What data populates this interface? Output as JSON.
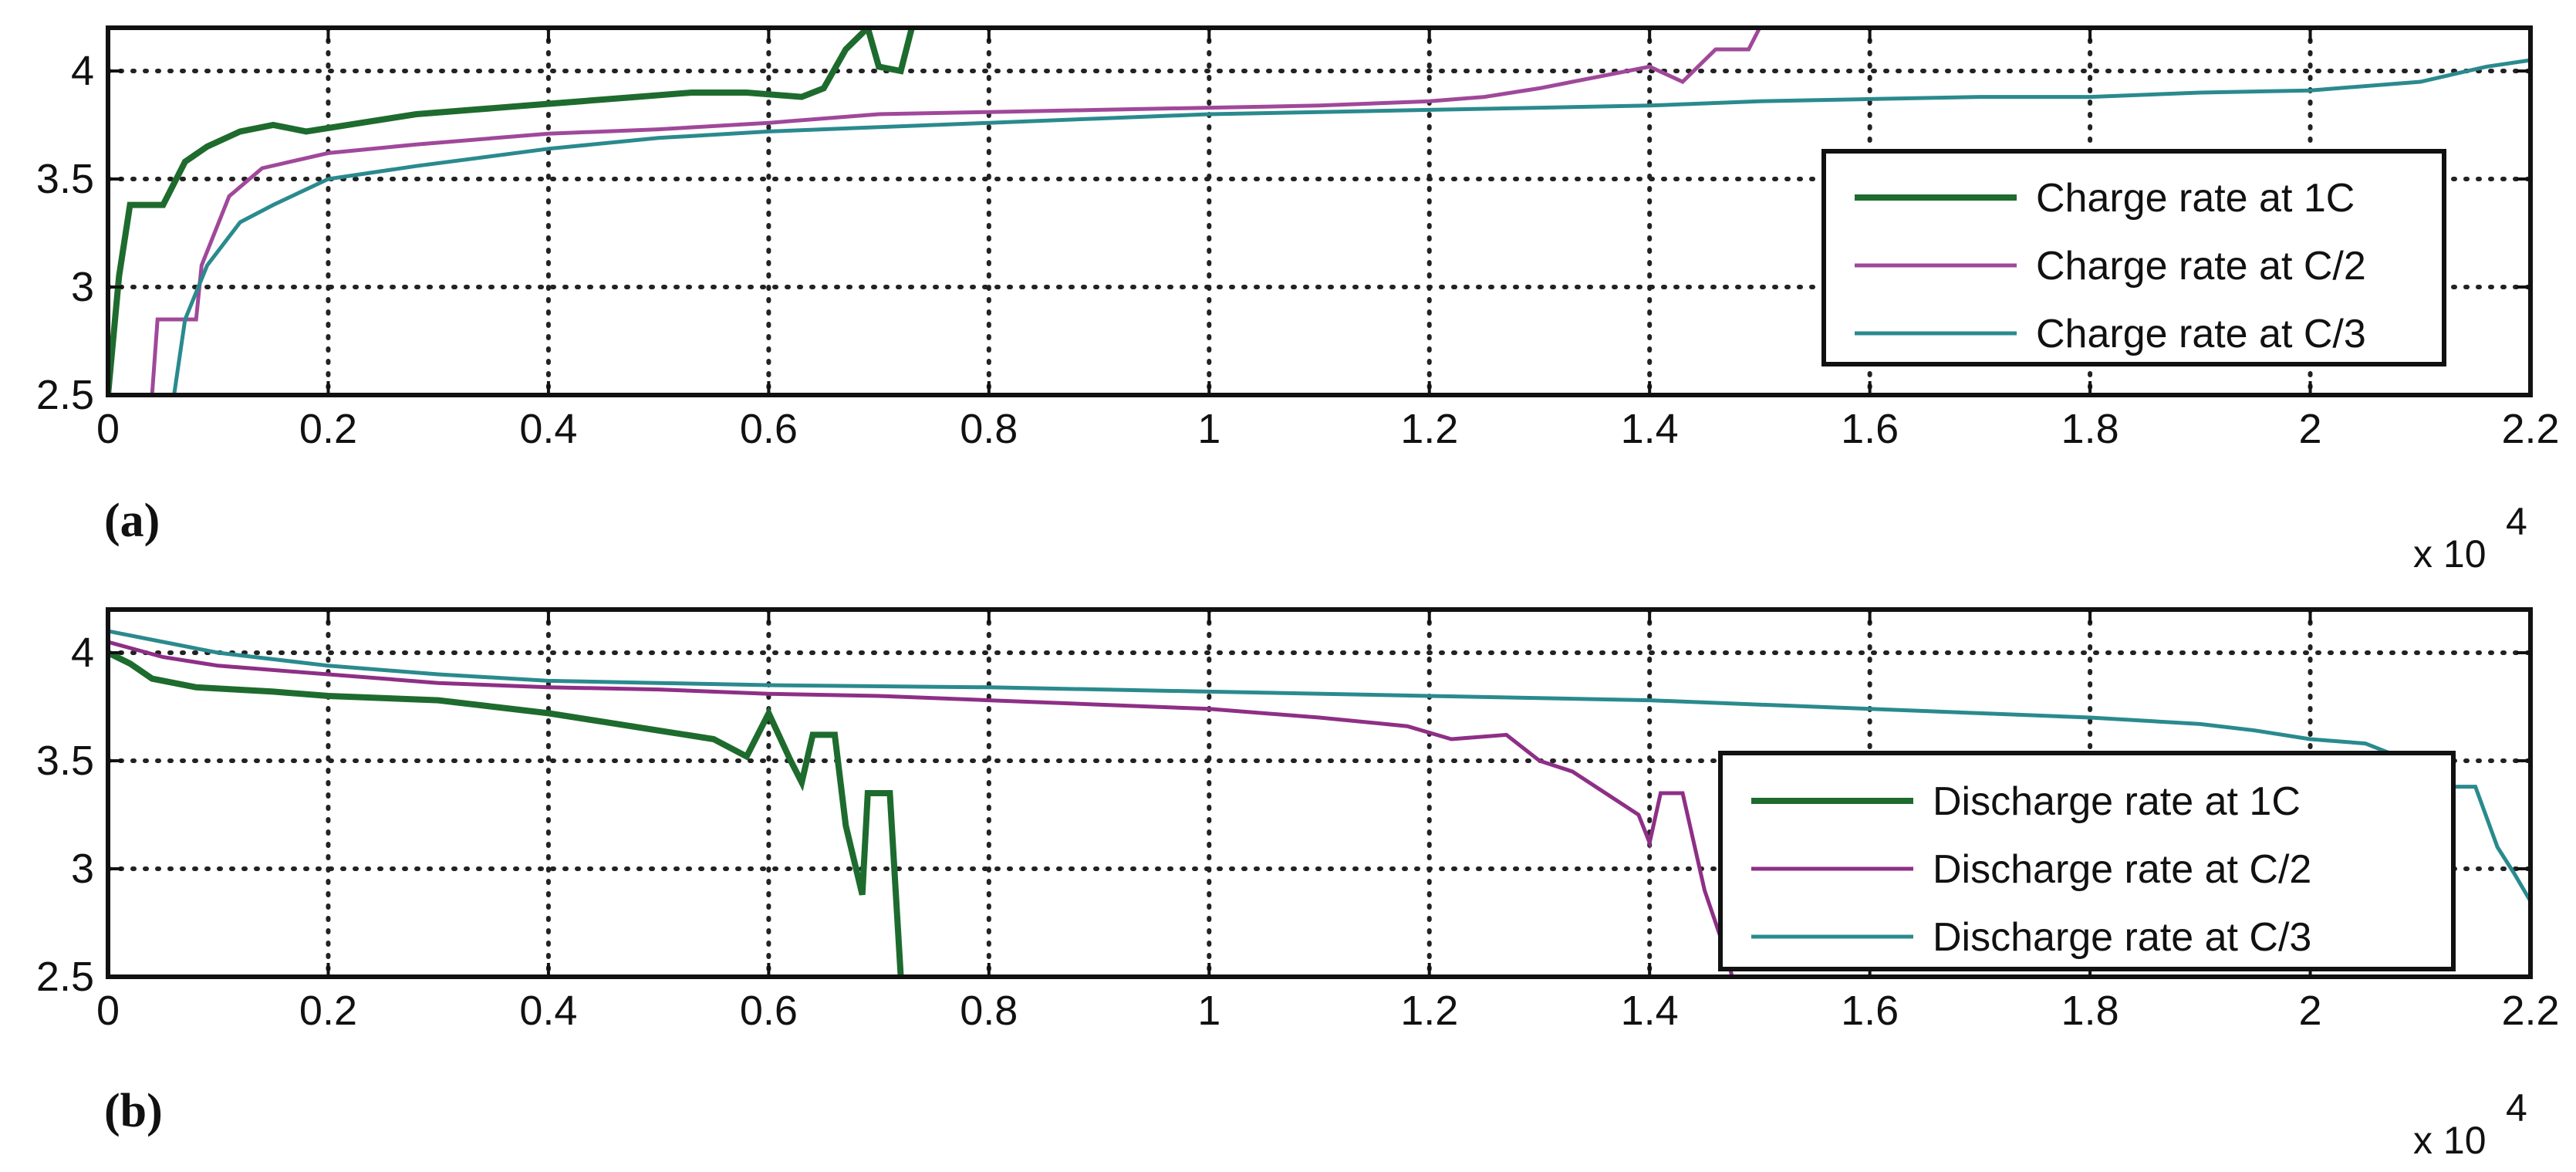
{
  "chart_data": [
    {
      "type": "line",
      "panel_label": "(a)",
      "x_multiplier": "x 10",
      "x_multiplier_exp": "4",
      "xlim": [
        0,
        22000
      ],
      "ylim": [
        2.5,
        4.2
      ],
      "xticks": [
        0,
        2000,
        4000,
        6000,
        8000,
        10000,
        12000,
        14000,
        16000,
        18000,
        20000,
        22000
      ],
      "xtick_labels": [
        "0",
        "0.2",
        "0.4",
        "0.6",
        "0.8",
        "1",
        "1.2",
        "1.4",
        "1.6",
        "1.8",
        "2",
        "2.2"
      ],
      "yticks": [
        2.5,
        3,
        3.5,
        4
      ],
      "ytick_labels": [
        "2.5",
        "3",
        "3.5",
        "4"
      ],
      "grid": true,
      "legend_position": "right",
      "series": [
        {
          "name": "Charge rate at 1C",
          "color": "#1e6b2e",
          "points": [
            [
              0,
              2.5
            ],
            [
              100,
              3.05
            ],
            [
              200,
              3.38
            ],
            [
              500,
              3.38
            ],
            [
              700,
              3.58
            ],
            [
              900,
              3.65
            ],
            [
              1200,
              3.72
            ],
            [
              1500,
              3.75
            ],
            [
              1800,
              3.72
            ],
            [
              2300,
              3.76
            ],
            [
              2800,
              3.8
            ],
            [
              3300,
              3.82
            ],
            [
              3800,
              3.84
            ],
            [
              4300,
              3.86
            ],
            [
              4800,
              3.88
            ],
            [
              5300,
              3.9
            ],
            [
              5800,
              3.9
            ],
            [
              6300,
              3.88
            ],
            [
              6500,
              3.92
            ],
            [
              6700,
              4.1
            ],
            [
              6900,
              4.2
            ],
            [
              7000,
              4.02
            ],
            [
              7200,
              4.0
            ],
            [
              7300,
              4.2
            ]
          ]
        },
        {
          "name": "Charge rate at C/2",
          "color": "#a0489a",
          "points": [
            [
              0,
              2.5
            ],
            [
              400,
              2.5
            ],
            [
              450,
              2.85
            ],
            [
              800,
              2.85
            ],
            [
              850,
              3.1
            ],
            [
              1100,
              3.42
            ],
            [
              1400,
              3.55
            ],
            [
              2000,
              3.62
            ],
            [
              2800,
              3.66
            ],
            [
              4000,
              3.71
            ],
            [
              5000,
              3.73
            ],
            [
              6000,
              3.76
            ],
            [
              7000,
              3.8
            ],
            [
              8000,
              3.81
            ],
            [
              9000,
              3.82
            ],
            [
              10000,
              3.83
            ],
            [
              11000,
              3.84
            ],
            [
              12000,
              3.86
            ],
            [
              12500,
              3.88
            ],
            [
              13000,
              3.92
            ],
            [
              13500,
              3.97
            ],
            [
              14000,
              4.02
            ],
            [
              14300,
              3.95
            ],
            [
              14600,
              4.1
            ],
            [
              14900,
              4.1
            ],
            [
              15000,
              4.2
            ]
          ]
        },
        {
          "name": "Charge rate at C/3",
          "color": "#2a8a8e",
          "points": [
            [
              0,
              2.5
            ],
            [
              600,
              2.5
            ],
            [
              700,
              2.85
            ],
            [
              900,
              3.1
            ],
            [
              1200,
              3.3
            ],
            [
              1500,
              3.38
            ],
            [
              2000,
              3.5
            ],
            [
              2800,
              3.56
            ],
            [
              4000,
              3.64
            ],
            [
              5000,
              3.69
            ],
            [
              6000,
              3.72
            ],
            [
              7000,
              3.74
            ],
            [
              8000,
              3.76
            ],
            [
              9000,
              3.78
            ],
            [
              10000,
              3.8
            ],
            [
              11000,
              3.81
            ],
            [
              12000,
              3.82
            ],
            [
              13000,
              3.83
            ],
            [
              14000,
              3.84
            ],
            [
              15000,
              3.86
            ],
            [
              16000,
              3.87
            ],
            [
              17000,
              3.88
            ],
            [
              18000,
              3.88
            ],
            [
              19000,
              3.9
            ],
            [
              20000,
              3.91
            ],
            [
              21000,
              3.95
            ],
            [
              21600,
              4.02
            ],
            [
              22000,
              4.05
            ]
          ]
        }
      ]
    },
    {
      "type": "line",
      "panel_label": "(b)",
      "x_multiplier": "x 10",
      "x_multiplier_exp": "4",
      "xlim": [
        0,
        22000
      ],
      "ylim": [
        2.5,
        4.2
      ],
      "xticks": [
        0,
        2000,
        4000,
        6000,
        8000,
        10000,
        12000,
        14000,
        16000,
        18000,
        20000,
        22000
      ],
      "xtick_labels": [
        "0",
        "0.2",
        "0.4",
        "0.6",
        "0.8",
        "1",
        "1.2",
        "1.4",
        "1.6",
        "1.8",
        "2",
        "2.2"
      ],
      "yticks": [
        2.5,
        3,
        3.5,
        4
      ],
      "ytick_labels": [
        "2.5",
        "3",
        "3.5",
        "4"
      ],
      "grid": true,
      "legend_position": "lower-right",
      "series": [
        {
          "name": "Discharge rate at 1C",
          "color": "#1e6b2e",
          "points": [
            [
              0,
              4.0
            ],
            [
              200,
              3.95
            ],
            [
              400,
              3.88
            ],
            [
              800,
              3.84
            ],
            [
              1500,
              3.82
            ],
            [
              2000,
              3.8
            ],
            [
              3000,
              3.78
            ],
            [
              3500,
              3.75
            ],
            [
              4000,
              3.72
            ],
            [
              4500,
              3.68
            ],
            [
              5000,
              3.64
            ],
            [
              5500,
              3.6
            ],
            [
              5800,
              3.52
            ],
            [
              6000,
              3.72
            ],
            [
              6200,
              3.5
            ],
            [
              6300,
              3.4
            ],
            [
              6400,
              3.62
            ],
            [
              6600,
              3.62
            ],
            [
              6700,
              3.2
            ],
            [
              6850,
              2.88
            ],
            [
              6900,
              3.35
            ],
            [
              7100,
              3.35
            ],
            [
              7200,
              2.5
            ]
          ]
        },
        {
          "name": "Discharge rate at C/2",
          "color": "#8e2f86",
          "points": [
            [
              0,
              4.05
            ],
            [
              500,
              3.98
            ],
            [
              1000,
              3.94
            ],
            [
              2000,
              3.9
            ],
            [
              3000,
              3.86
            ],
            [
              4000,
              3.84
            ],
            [
              5000,
              3.83
            ],
            [
              6000,
              3.81
            ],
            [
              7000,
              3.8
            ],
            [
              8000,
              3.78
            ],
            [
              9000,
              3.76
            ],
            [
              10000,
              3.74
            ],
            [
              11000,
              3.7
            ],
            [
              11800,
              3.66
            ],
            [
              12200,
              3.6
            ],
            [
              12700,
              3.62
            ],
            [
              13000,
              3.5
            ],
            [
              13300,
              3.45
            ],
            [
              13600,
              3.35
            ],
            [
              13900,
              3.25
            ],
            [
              14000,
              3.12
            ],
            [
              14100,
              3.35
            ],
            [
              14300,
              3.35
            ],
            [
              14500,
              2.9
            ],
            [
              14700,
              2.6
            ],
            [
              14750,
              2.5
            ]
          ]
        },
        {
          "name": "Discharge rate at C/3",
          "color": "#2a8a8e",
          "points": [
            [
              0,
              4.1
            ],
            [
              500,
              4.05
            ],
            [
              1000,
              4.0
            ],
            [
              2000,
              3.94
            ],
            [
              3000,
              3.9
            ],
            [
              4000,
              3.87
            ],
            [
              5000,
              3.86
            ],
            [
              6000,
              3.85
            ],
            [
              8000,
              3.84
            ],
            [
              10000,
              3.82
            ],
            [
              12000,
              3.8
            ],
            [
              14000,
              3.78
            ],
            [
              15000,
              3.76
            ],
            [
              16000,
              3.74
            ],
            [
              17000,
              3.72
            ],
            [
              18000,
              3.7
            ],
            [
              19000,
              3.67
            ],
            [
              19500,
              3.64
            ],
            [
              20000,
              3.6
            ],
            [
              20500,
              3.58
            ],
            [
              20800,
              3.52
            ],
            [
              21000,
              3.3
            ],
            [
              21100,
              3.22
            ],
            [
              21300,
              3.38
            ],
            [
              21500,
              3.38
            ],
            [
              21700,
              3.1
            ],
            [
              21850,
              2.98
            ],
            [
              22000,
              2.85
            ]
          ]
        }
      ]
    }
  ]
}
